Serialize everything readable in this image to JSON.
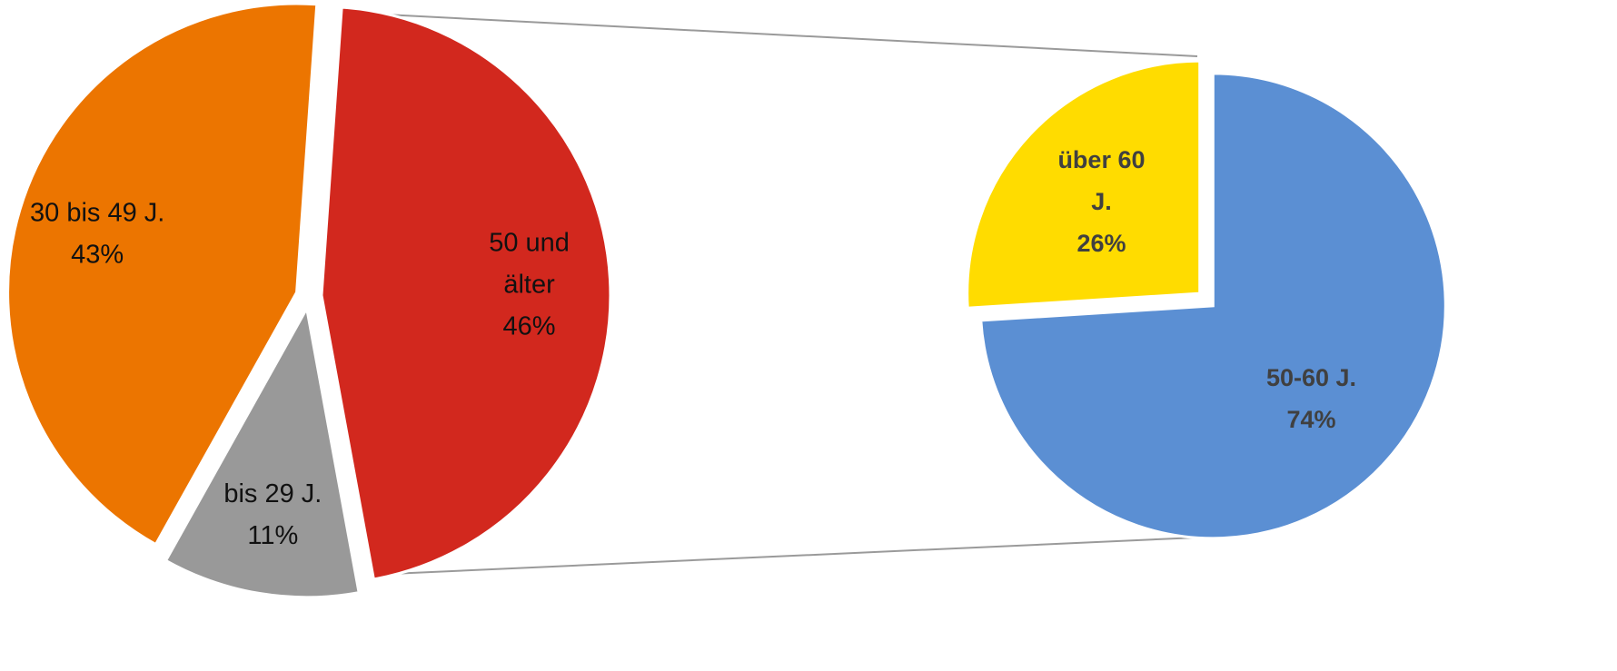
{
  "chart_data": [
    {
      "type": "pie",
      "slices": [
        {
          "label_lines": [
            "50 und",
            "älter"
          ],
          "pct_text": "46%",
          "value": 46,
          "color": "#d2281e"
        },
        {
          "label_lines": [
            "bis 29 J."
          ],
          "pct_text": "11%",
          "value": 11,
          "color": "#999999"
        },
        {
          "label_lines": [
            "30 bis 49 J."
          ],
          "pct_text": "43%",
          "value": 43,
          "color": "#ec7500"
        }
      ]
    },
    {
      "type": "pie",
      "slices": [
        {
          "label_lines": [
            "50-60 J."
          ],
          "pct_text": "74%",
          "value": 74,
          "color": "#5b8fd3"
        },
        {
          "label_lines": [
            "über 60",
            "J."
          ],
          "pct_text": "26%",
          "value": 26,
          "color": "#ffdc00"
        }
      ]
    }
  ],
  "connector_color": "#9a9a9a"
}
